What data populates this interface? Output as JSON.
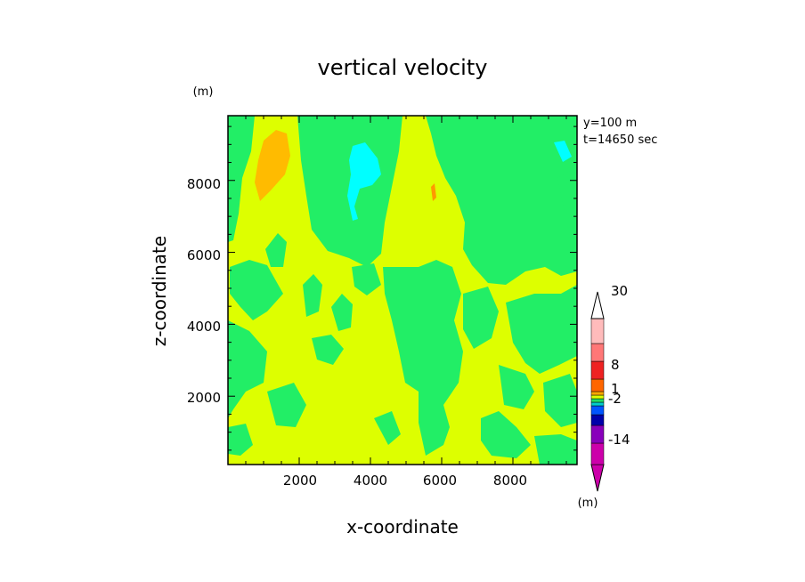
{
  "chart_data": {
    "type": "heatmap",
    "title": "vertical velocity",
    "xlabel": "x-coordinate",
    "ylabel": "z-coordinate",
    "y_unit_label": "(m)",
    "x_unit_label": "(m)",
    "annotations": [
      "y=100 m",
      "t=14650 sec"
    ],
    "xlim": [
      0,
      9800
    ],
    "ylim": [
      100,
      9800
    ],
    "x_ticks": [
      "2000",
      "4000",
      "6000",
      "8000"
    ],
    "y_ticks": [
      "2000",
      "4000",
      "6000",
      "8000"
    ],
    "colorbar": {
      "labels": [
        "30",
        "8",
        "1",
        "-2",
        "-14"
      ],
      "colors": [
        "#cc00aa",
        "#8800bb",
        "#0000aa",
        "#0055ff",
        "#00cccc",
        "#22dd66",
        "#ddff00",
        "#ffaa00",
        "#ff6600",
        "#ee2222",
        "#ff7777",
        "#ffbbbb"
      ]
    },
    "field_colors": {
      "positive_small": "#ddff00",
      "negative_small": "#22ee66",
      "moderate_up": "#ffbb00",
      "moderate_down": "#00ffff"
    }
  }
}
